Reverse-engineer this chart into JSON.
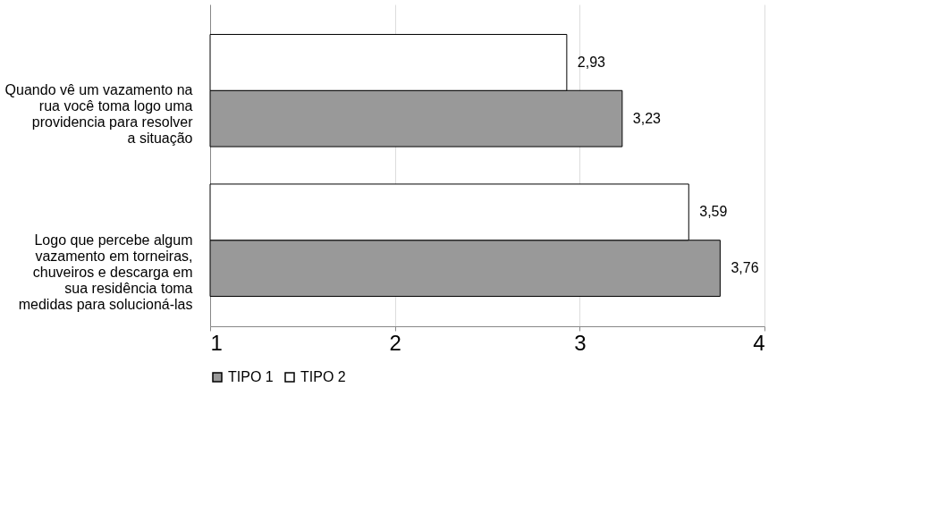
{
  "chart_data": {
    "type": "bar",
    "orientation": "horizontal",
    "categories": [
      "Quando vê um vazamento na rua você toma logo uma providencia para resolver a situação",
      "Logo que percebe algum vazamento em torneiras, chuveiros e descarga em sua residência toma medidas para solucioná-las"
    ],
    "series": [
      {
        "name": "TIPO 1",
        "color": "#999999",
        "values": [
          3.23,
          3.76
        ],
        "value_labels": [
          "3,23",
          "3,76"
        ]
      },
      {
        "name": "TIPO 2",
        "color": "#ffffff",
        "values": [
          2.93,
          3.59
        ],
        "value_labels": [
          "2,93",
          "3,59"
        ]
      }
    ],
    "xlim": [
      1,
      4
    ],
    "xticks": [
      1,
      2,
      3,
      4
    ],
    "grid": "x",
    "legend": "bottom"
  }
}
